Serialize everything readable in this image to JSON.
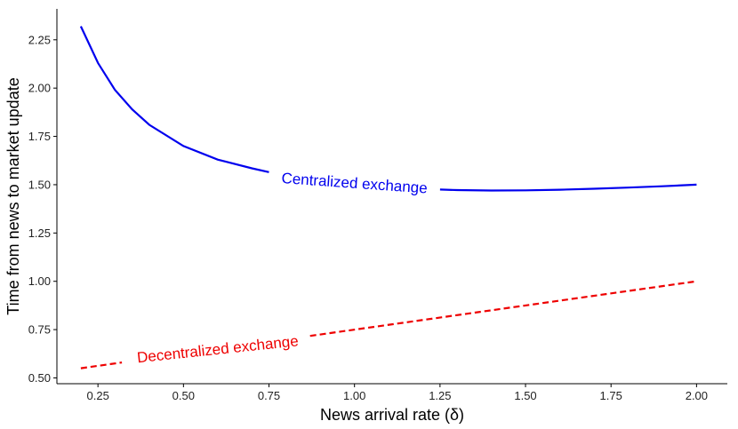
{
  "chart_data": {
    "type": "line",
    "title": "",
    "xlabel": "News arrival rate (δ)",
    "ylabel": "Time from news to market update",
    "xlim": [
      0.13,
      2.09
    ],
    "ylim": [
      0.47,
      2.41
    ],
    "x_ticks": [
      "0.25",
      "0.50",
      "0.75",
      "1.00",
      "1.25",
      "1.50",
      "1.75",
      "2.00"
    ],
    "y_ticks": [
      "0.50",
      "0.75",
      "1.00",
      "1.25",
      "1.50",
      "1.75",
      "2.00",
      "2.25"
    ],
    "grid": false,
    "series": [
      {
        "name": "Centralized exchange",
        "color": "#0000ee",
        "style": "solid",
        "x": [
          0.2,
          0.25,
          0.3,
          0.35,
          0.4,
          0.5,
          0.6,
          0.7,
          0.75,
          0.8,
          0.9,
          1.0,
          1.1,
          1.2,
          1.25,
          1.3,
          1.4,
          1.5,
          1.6,
          1.7,
          1.8,
          1.9,
          2.0
        ],
        "y": [
          2.32,
          2.13,
          1.99,
          1.89,
          1.81,
          1.7,
          1.63,
          1.585,
          1.565,
          1.545,
          1.52,
          1.5,
          1.487,
          1.478,
          1.475,
          1.472,
          1.47,
          1.471,
          1.474,
          1.479,
          1.485,
          1.492,
          1.5
        ]
      },
      {
        "name": "Decentralized exchange",
        "color": "#ee0000",
        "style": "dashed",
        "x": [
          0.2,
          2.0
        ],
        "y": [
          0.55,
          1.0
        ]
      }
    ]
  }
}
